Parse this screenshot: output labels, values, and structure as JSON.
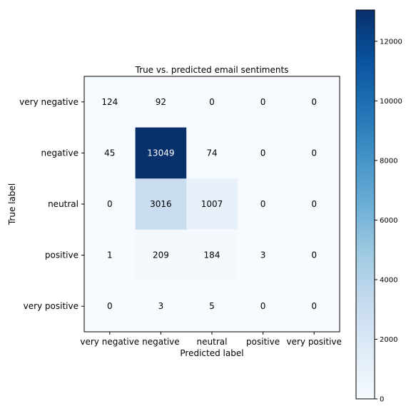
{
  "chart_data": {
    "type": "heatmap",
    "title": "True vs. predicted email sentiments",
    "xlabel": "Predicted label",
    "ylabel": "True label",
    "x_categories": [
      "very negative",
      "negative",
      "neutral",
      "positive",
      "very positive"
    ],
    "y_categories": [
      "very negative",
      "negative",
      "neutral",
      "positive",
      "very positive"
    ],
    "values": [
      [
        124,
        92,
        0,
        0,
        0
      ],
      [
        45,
        13049,
        74,
        0,
        0
      ],
      [
        0,
        3016,
        1007,
        0,
        0
      ],
      [
        1,
        209,
        184,
        3,
        0
      ],
      [
        0,
        3,
        5,
        0,
        0
      ]
    ],
    "colorscale": "Blues",
    "colorbar": {
      "min": 0,
      "max": 13049,
      "ticks": [
        0,
        2000,
        4000,
        6000,
        8000,
        10000,
        12000
      ]
    },
    "grid": false
  }
}
